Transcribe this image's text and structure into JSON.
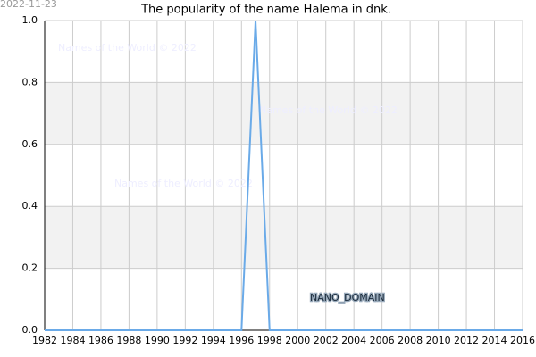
{
  "chart_data": {
    "type": "line",
    "title": "The popularity of the name Halema in dnk.",
    "date": "2022-11-23",
    "watermarks": [
      "Names of the World © 2022",
      "Names of the World © 2022",
      "Names of the World © 2022"
    ],
    "label": "NANO_DOMAIN",
    "x": [
      1982,
      1983,
      1984,
      1985,
      1986,
      1987,
      1988,
      1989,
      1990,
      1991,
      1992,
      1993,
      1994,
      1995,
      1996,
      1997,
      1998,
      1999,
      2000,
      2001,
      2002,
      2003,
      2004,
      2005,
      2006,
      2007,
      2008,
      2009,
      2010,
      2011,
      2012,
      2013,
      2014,
      2015,
      2016
    ],
    "series": [
      {
        "color": "#6aaae8",
        "values": [
          0,
          0,
          0,
          0,
          0,
          0,
          0,
          0,
          0,
          0,
          0,
          0,
          0,
          0,
          0,
          1,
          0,
          0,
          0,
          0,
          0,
          0,
          0,
          0,
          0,
          0,
          0,
          0,
          0,
          0,
          0,
          0,
          0,
          0,
          0
        ]
      }
    ],
    "xlim": [
      1982,
      2016
    ],
    "xticks": [
      1982,
      1984,
      1986,
      1988,
      1990,
      1992,
      1994,
      1996,
      1998,
      2000,
      2002,
      2004,
      2006,
      2008,
      2010,
      2012,
      2014,
      2016
    ],
    "ylim": [
      0,
      1
    ],
    "yticks": [
      {
        "value": 0,
        "label": "0.0"
      },
      0.2,
      0.4,
      0.6,
      0.8,
      {
        "value": 1,
        "label": "1.0"
      }
    ],
    "grid": true
  }
}
